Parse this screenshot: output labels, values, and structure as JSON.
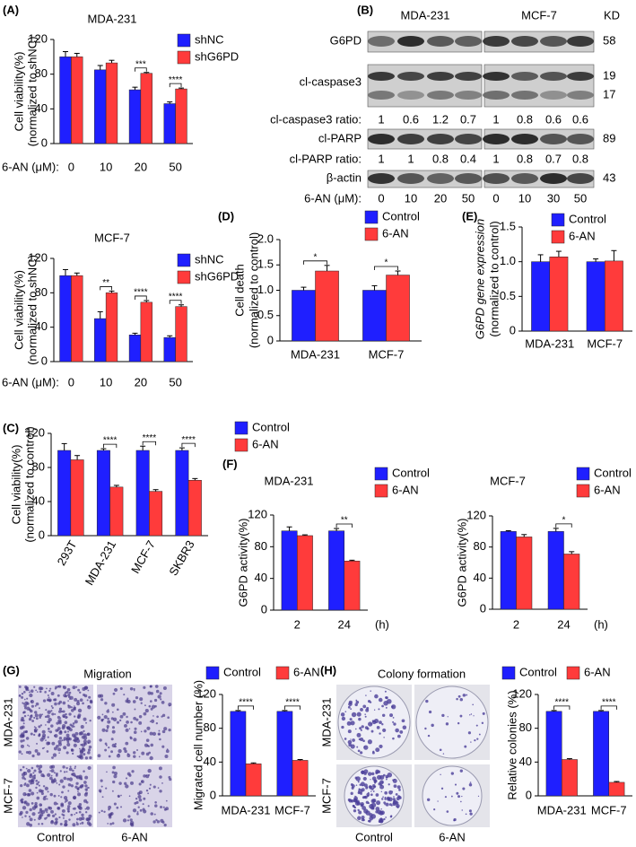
{
  "panel_labels": [
    "(A)",
    "(B)",
    "(C)",
    "(D)",
    "(E)",
    "(F)",
    "(G)",
    "(H)"
  ],
  "chart_data": [
    {
      "type": "bar",
      "title": "MDA-231",
      "ylabel": [
        "Cell viability(%)",
        "(normalized to shNC)"
      ],
      "xlabel": "6-AN (μM):",
      "categories": [
        "0",
        "10",
        "20",
        "50"
      ],
      "series": [
        {
          "name": "shNC",
          "color": "#1f1fff",
          "values": [
            100,
            85,
            62,
            46
          ],
          "errors": [
            6,
            5,
            3,
            2
          ]
        },
        {
          "name": "shG6PD",
          "color": "#ff3b3b",
          "values": [
            100,
            93,
            81,
            63
          ],
          "errors": [
            4,
            3,
            1,
            1
          ]
        }
      ],
      "significance": [
        null,
        null,
        "***",
        "****"
      ],
      "ylim": [
        0,
        120
      ],
      "yticks": [
        0,
        40,
        80,
        120
      ]
    },
    {
      "type": "bar",
      "title": "MCF-7",
      "ylabel": [
        "Cell viability(%)",
        "(normalized to shNC)"
      ],
      "xlabel": "6-AN (μM):",
      "categories": [
        "0",
        "10",
        "20",
        "50"
      ],
      "series": [
        {
          "name": "shNC",
          "color": "#1f1fff",
          "values": [
            100,
            50,
            31,
            28
          ],
          "errors": [
            7,
            8,
            2,
            2
          ]
        },
        {
          "name": "shG6PD",
          "color": "#ff3b3b",
          "values": [
            100,
            80,
            69,
            64
          ],
          "errors": [
            3,
            2,
            2,
            2
          ]
        }
      ],
      "significance": [
        null,
        "**",
        "****",
        "****"
      ],
      "ylim": [
        0,
        120
      ],
      "yticks": [
        0,
        40,
        80,
        120
      ]
    },
    {
      "type": "bar",
      "ylabel": [
        "Cell viability(%)",
        "(normalized to control)"
      ],
      "categories": [
        "293T",
        "MDA-231",
        "MCF-7",
        "SKBR3"
      ],
      "series": [
        {
          "name": "Control",
          "color": "#1f1fff",
          "values": [
            100,
            100,
            100,
            100
          ],
          "errors": [
            8,
            2,
            5,
            3
          ]
        },
        {
          "name": "6-AN",
          "color": "#ff3b3b",
          "values": [
            89,
            57,
            52,
            65
          ],
          "errors": [
            5,
            2,
            2,
            2
          ]
        }
      ],
      "significance": [
        null,
        "****",
        "****",
        "****"
      ],
      "ylim": [
        0,
        120
      ],
      "yticks": [
        0,
        40,
        80,
        120
      ]
    },
    {
      "type": "bar",
      "ylabel": [
        "Cell death",
        "(normalized to control)"
      ],
      "categories": [
        "MDA-231",
        "MCF-7"
      ],
      "series": [
        {
          "name": "Control",
          "color": "#1f1fff",
          "values": [
            1.0,
            1.0
          ],
          "errors": [
            0.06,
            0.09
          ]
        },
        {
          "name": "6-AN",
          "color": "#ff3b3b",
          "values": [
            1.38,
            1.3
          ],
          "errors": [
            0.11,
            0.08
          ]
        }
      ],
      "significance": [
        "*",
        "*"
      ],
      "ylim": [
        0,
        2.0
      ],
      "yticks": [
        0,
        0.5,
        {
          "value": 1.0,
          "label": "1.0"
        },
        1.5,
        {
          "value": 2.0,
          "label": "2.0"
        }
      ]
    },
    {
      "type": "bar",
      "ylabel": [
        "G6PD gene expression",
        "(normalized to control)"
      ],
      "categories": [
        "MDA-231",
        "MCF-7"
      ],
      "series": [
        {
          "name": "Control",
          "color": "#1f1fff",
          "values": [
            1.0,
            1.0
          ],
          "errors": [
            0.1,
            0.04
          ]
        },
        {
          "name": "6-AN",
          "color": "#ff3b3b",
          "values": [
            1.07,
            1.01
          ],
          "errors": [
            0.08,
            0.15
          ]
        }
      ],
      "ylim": [
        0,
        1.5
      ],
      "yticks": [
        0,
        0.5,
        {
          "value": 1.0,
          "label": "1.0"
        },
        1.5
      ]
    },
    {
      "type": "bar",
      "title": "MDA-231",
      "ylabel": [
        "G6PD activity(%)"
      ],
      "xlabel": "(h)",
      "categories": [
        "2",
        "24"
      ],
      "series": [
        {
          "name": "Control",
          "color": "#1f1fff",
          "values": [
            100,
            100
          ],
          "errors": [
            5,
            3
          ]
        },
        {
          "name": "6-AN",
          "color": "#ff3b3b",
          "values": [
            94,
            62
          ],
          "errors": [
            1,
            1
          ]
        }
      ],
      "significance": [
        null,
        "**"
      ],
      "ylim": [
        0,
        120
      ],
      "yticks": [
        0,
        40,
        80,
        120
      ]
    },
    {
      "type": "bar",
      "title": "MCF-7",
      "ylabel": [
        "G6PD activity(%)"
      ],
      "xlabel": "(h)",
      "categories": [
        "2",
        "24"
      ],
      "series": [
        {
          "name": "Control",
          "color": "#1f1fff",
          "values": [
            100,
            100
          ],
          "errors": [
            1,
            4
          ]
        },
        {
          "name": "6-AN",
          "color": "#ff3b3b",
          "values": [
            93,
            71
          ],
          "errors": [
            3,
            3
          ]
        }
      ],
      "significance": [
        null,
        "*"
      ],
      "ylim": [
        0,
        120
      ],
      "yticks": [
        0,
        40,
        80,
        120
      ]
    },
    {
      "type": "bar",
      "ylabel": [
        "Migrated cell number (%)"
      ],
      "categories": [
        "MDA-231",
        "MCF-7"
      ],
      "series": [
        {
          "name": "Control",
          "color": "#1f1fff",
          "values": [
            100,
            100
          ],
          "errors": [
            1,
            1
          ]
        },
        {
          "name": "6-AN",
          "color": "#ff3b3b",
          "values": [
            38,
            42
          ],
          "errors": [
            1,
            1
          ]
        }
      ],
      "significance": [
        "****",
        "****"
      ],
      "ylim": [
        0,
        120
      ],
      "yticks": [
        0,
        40,
        80,
        120
      ]
    },
    {
      "type": "bar",
      "ylabel": [
        "Relative colonies (%)"
      ],
      "categories": [
        "MDA-231",
        "MCF-7"
      ],
      "series": [
        {
          "name": "Control",
          "color": "#1f1fff",
          "values": [
            100,
            100
          ],
          "errors": [
            1,
            1
          ]
        },
        {
          "name": "6-AN",
          "color": "#ff3b3b",
          "values": [
            43,
            16
          ],
          "errors": [
            1,
            1
          ]
        }
      ],
      "significance": [
        "****",
        "****"
      ],
      "ylim": [
        0,
        120
      ],
      "yticks": [
        0,
        40,
        80,
        120
      ]
    }
  ],
  "blot": {
    "groups": [
      "MDA-231",
      "MCF-7"
    ],
    "kd_header": "KD",
    "rows": [
      {
        "label": "G6PD",
        "kd": [
          58
        ]
      },
      {
        "label": "cl-caspase3",
        "kd": [
          19,
          17
        ]
      },
      {
        "label": "cl-caspase3 ratio:",
        "values": [
          [
            1,
            0.6,
            1.2,
            0.7
          ],
          [
            1,
            0.8,
            0.6,
            0.6
          ]
        ]
      },
      {
        "label": "cl-PARP",
        "kd": [
          89
        ]
      },
      {
        "label": "cl-PARP ratio:",
        "values": [
          [
            1,
            1,
            0.8,
            0.4
          ],
          [
            1,
            0.8,
            0.7,
            0.8
          ]
        ]
      },
      {
        "label": "β-actin",
        "kd": [
          43
        ]
      },
      {
        "label": "6-AN (μM):",
        "values": [
          [
            0,
            10,
            20,
            50
          ],
          [
            0,
            10,
            30,
            50
          ]
        ]
      }
    ]
  },
  "images": [
    {
      "title": "Migration",
      "rows": [
        "MDA-231",
        "MCF-7"
      ],
      "cols": [
        "Control",
        "6-AN"
      ]
    },
    {
      "title": "Colony formation",
      "rows": [
        "MDA-231",
        "MCF-7"
      ],
      "cols": [
        "Control",
        "6-AN"
      ]
    }
  ]
}
